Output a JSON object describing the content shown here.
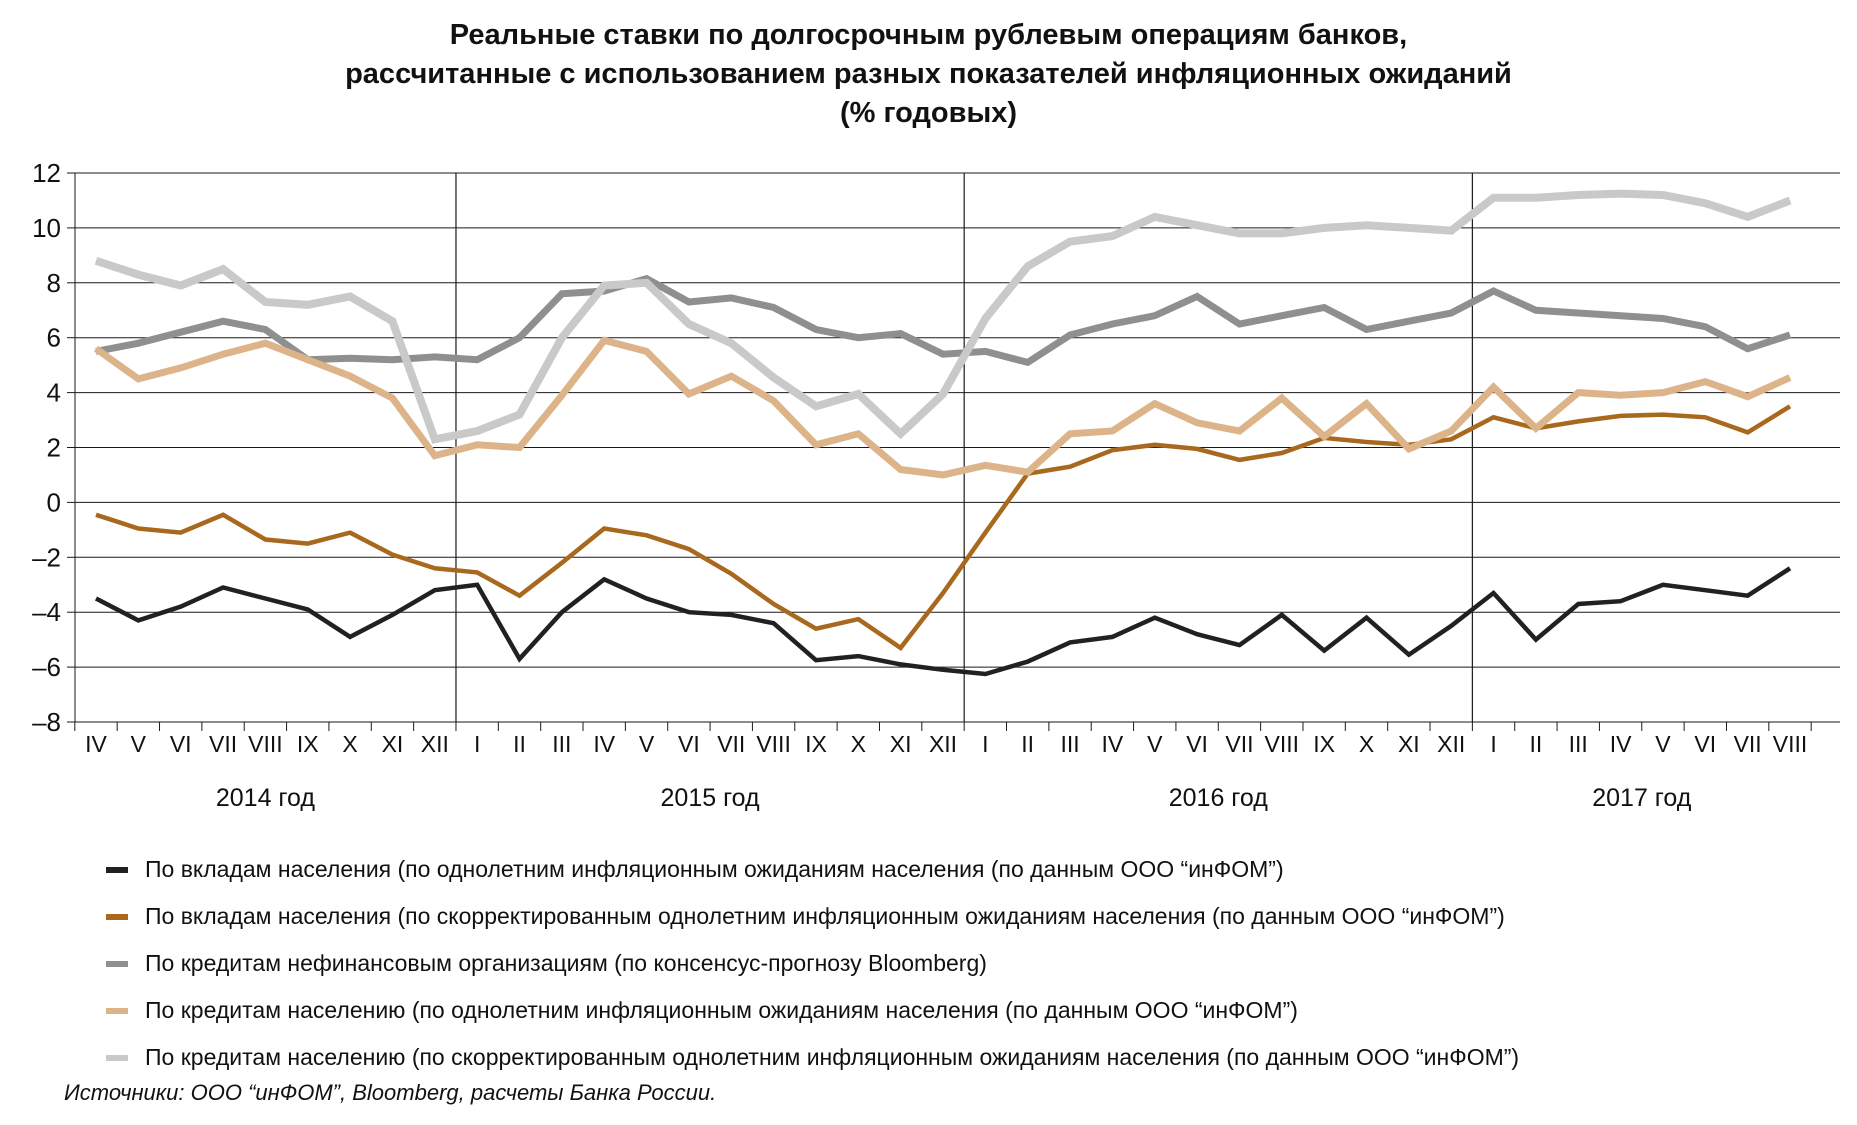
{
  "title": {
    "line1": "Реальные ставки по долгосрочным рублевым операциям банков,",
    "line2": "рассчитанные с использованием разных показателей инфляционных ожиданий",
    "line3": "(% годовых)"
  },
  "source": "Источники: ООО “инФОМ”, Bloomberg, расчеты Банка России.",
  "chart_data": {
    "type": "line",
    "grid": true,
    "legend_position": "bottom",
    "ylim": [
      -8,
      12
    ],
    "ytick_step": 2,
    "y_ticks": [
      12,
      10,
      8,
      6,
      4,
      2,
      0,
      -2,
      -4,
      -6,
      -8
    ],
    "x_labels": [
      "IV",
      "V",
      "VI",
      "VII",
      "VIII",
      "IX",
      "X",
      "XI",
      "XII",
      "I",
      "II",
      "III",
      "IV",
      "V",
      "VI",
      "VII",
      "VIII",
      "IX",
      "X",
      "XI",
      "XII",
      "I",
      "II",
      "III",
      "IV",
      "V",
      "VI",
      "VII",
      "VIII",
      "IX",
      "X",
      "XI",
      "XII",
      "I",
      "II",
      "III",
      "IV",
      "V",
      "VI",
      "VII",
      "VIII"
    ],
    "year_groups": [
      {
        "label": "2014 год",
        "start": 0,
        "end": 8
      },
      {
        "label": "2015 год",
        "start": 9,
        "end": 20
      },
      {
        "label": "2016 год",
        "start": 21,
        "end": 32
      },
      {
        "label": "2017 год",
        "start": 33,
        "end": 40
      }
    ],
    "axis_color": "#1a1a1a",
    "series": [
      {
        "name": "По вкладам населения (по однолетним инфляционным ожиданиям населения (по данным ООО “инФОМ”)",
        "color": "#212121",
        "width": 4.5,
        "values": [
          -3.5,
          -4.3,
          -3.8,
          -3.1,
          -3.5,
          -3.9,
          -4.9,
          -4.1,
          -3.2,
          -3.0,
          -5.7,
          -4.0,
          -2.8,
          -3.5,
          -4.0,
          -4.1,
          -4.4,
          -5.75,
          -5.6,
          -5.9,
          -6.1,
          -6.25,
          -5.8,
          -5.1,
          -4.9,
          -4.2,
          -4.8,
          -5.2,
          -4.1,
          -5.4,
          -4.2,
          -5.55,
          -4.5,
          -3.3,
          -5.0,
          -3.7,
          -3.6,
          -3.0,
          -3.2,
          -3.4,
          -2.4
        ]
      },
      {
        "name": "По вкладам населения (по скорректированным однолетним инфляционным ожиданиям населения (по данным ООО “инФОМ”)",
        "color": "#a8691e",
        "width": 4.5,
        "values": [
          -0.45,
          -0.95,
          -1.1,
          -0.45,
          -1.35,
          -1.5,
          -1.1,
          -1.9,
          -2.4,
          -2.55,
          -3.4,
          -2.2,
          -0.95,
          -1.2,
          -1.7,
          -2.6,
          -3.7,
          -4.6,
          -4.25,
          -5.3,
          -3.3,
          -1.1,
          1.05,
          1.3,
          1.9,
          2.1,
          1.95,
          1.55,
          1.8,
          2.35,
          2.2,
          2.1,
          2.3,
          3.1,
          2.7,
          2.95,
          3.15,
          3.2,
          3.1,
          2.55,
          3.5
        ]
      },
      {
        "name": "По кредитам нефинансовым организациям (по консенсус-прогнозу Bloomberg)",
        "color": "#8f8f8f",
        "width": 7,
        "values": [
          5.5,
          5.8,
          6.2,
          6.6,
          6.3,
          5.2,
          5.25,
          5.2,
          5.3,
          5.2,
          6.0,
          7.6,
          7.7,
          8.15,
          7.3,
          7.45,
          7.1,
          6.3,
          6.0,
          6.15,
          5.4,
          5.5,
          5.1,
          6.1,
          6.5,
          6.8,
          7.5,
          6.5,
          6.8,
          7.1,
          6.3,
          6.6,
          6.9,
          7.7,
          7.0,
          6.9,
          6.8,
          6.7,
          6.4,
          5.6,
          6.1
        ]
      },
      {
        "name": "По кредитам населению (по однолетним инфляционным ожиданиям населения (по данным ООО “инФОМ”)",
        "color": "#ddb48a",
        "width": 7,
        "values": [
          5.6,
          4.5,
          4.9,
          5.4,
          5.8,
          5.2,
          4.6,
          3.8,
          1.7,
          2.1,
          2.0,
          3.9,
          5.9,
          5.5,
          3.95,
          4.6,
          3.7,
          2.1,
          2.5,
          1.2,
          1.0,
          1.35,
          1.1,
          2.5,
          2.6,
          3.6,
          2.9,
          2.6,
          3.8,
          2.4,
          3.6,
          1.95,
          2.6,
          4.2,
          2.7,
          4.0,
          3.9,
          4.0,
          4.4,
          3.85,
          4.55
        ]
      },
      {
        "name": "По кредитам населению (по скорректированным однолетним инфляционным ожиданиям населения (по данным ООО “инФОМ”)",
        "color": "#c9c9c9",
        "width": 8,
        "values": [
          8.8,
          8.3,
          7.9,
          8.5,
          7.3,
          7.2,
          7.5,
          6.6,
          2.3,
          2.6,
          3.2,
          6.0,
          7.9,
          8.0,
          6.5,
          5.8,
          4.55,
          3.5,
          3.95,
          2.5,
          3.95,
          6.7,
          8.6,
          9.5,
          9.7,
          10.4,
          10.1,
          9.8,
          9.8,
          10.0,
          10.1,
          10.0,
          9.9,
          11.1,
          11.1,
          11.2,
          11.25,
          11.2,
          10.9,
          10.4,
          11.0
        ]
      }
    ]
  }
}
